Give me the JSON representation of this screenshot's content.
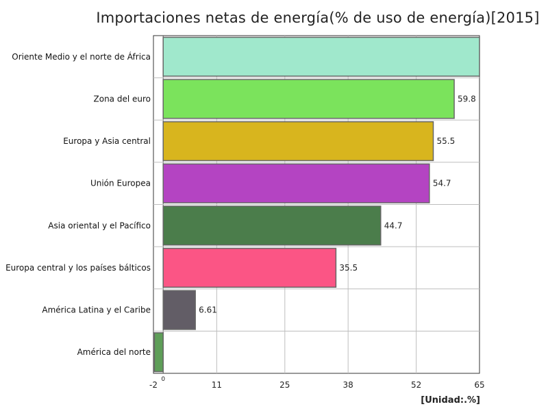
{
  "chart_data": {
    "type": "bar",
    "orientation": "horizontal",
    "title": "Importaciones netas de energía(% de uso de energía)[2015]",
    "unit": "[Unidad:.%]",
    "xlim": [
      -2,
      65
    ],
    "ticks": [
      {
        "value": -2,
        "label": "-2"
      },
      {
        "value": 0,
        "label": "0"
      },
      {
        "value": 11,
        "label": "11"
      },
      {
        "value": 25,
        "label": "25"
      },
      {
        "value": 38,
        "label": "38"
      },
      {
        "value": 52,
        "label": "52"
      },
      {
        "value": 65,
        "label": "65"
      }
    ],
    "grid": true,
    "categories": [
      "Oriente Medio y el norte de África",
      "Zona del euro",
      "Europa y Asia central",
      "Unión Europea",
      "Asia oriental y el Pacífico",
      "Europa central y los países bálticos",
      "América Latina y el Caribe",
      "América del norte"
    ],
    "values": [
      65,
      59.8,
      55.5,
      54.7,
      44.7,
      35.5,
      6.61,
      -1.8
    ],
    "value_labels": [
      "",
      "59.8",
      "55.5",
      "54.7",
      "44.7",
      "35.5",
      "6.61",
      ""
    ],
    "colors": [
      "#a0e8cc",
      "#7be35c",
      "#d8b51e",
      "#b444c2",
      "#4b7d4b",
      "#fb5585",
      "#625d66",
      "#5e9e58"
    ]
  }
}
